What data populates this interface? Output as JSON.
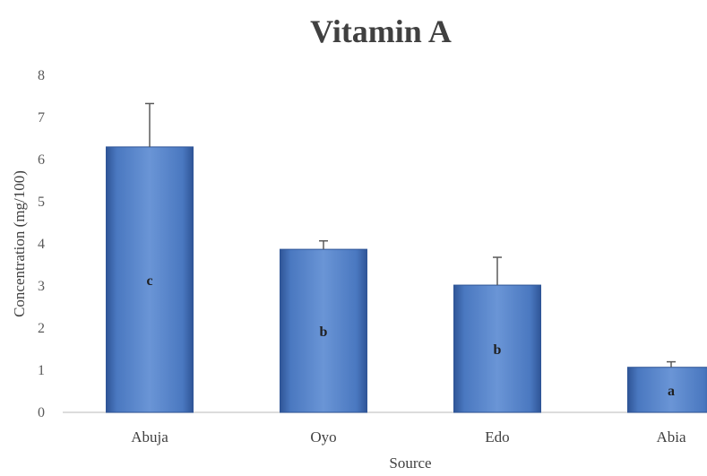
{
  "chart_data": {
    "type": "bar",
    "title": "Vitamin A",
    "xlabel": "Source",
    "ylabel": "Concentration (mg/100)",
    "categories": [
      "Abuja",
      "Oyo",
      "Edo",
      "Abia"
    ],
    "values": [
      6.3,
      3.87,
      3.02,
      1.07
    ],
    "error": [
      1.03,
      0.2,
      0.66,
      0.13
    ],
    "letters": [
      "c",
      "b",
      "b",
      "a"
    ],
    "ylim": [
      0,
      8
    ],
    "yticks": [
      "0",
      "1",
      "2",
      "3",
      "4",
      "5",
      "6",
      "7",
      "8"
    ],
    "grid": false,
    "legend": "none",
    "colors": {
      "bar": "#4a78c0",
      "bar_edge": "#2f5597",
      "error_bar": "#5a5a5a",
      "axis": "#d0d0d0"
    }
  }
}
